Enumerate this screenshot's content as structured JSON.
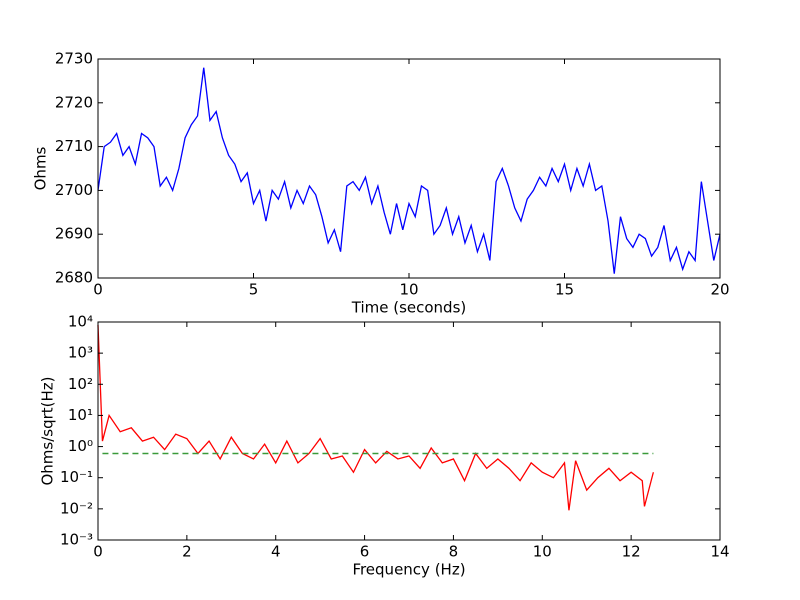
{
  "chart_data": [
    {
      "type": "line",
      "xlabel": "Time (seconds)",
      "ylabel": "Ohms",
      "xlim": [
        0,
        20
      ],
      "ylim": [
        2680,
        2730
      ],
      "xticks": [
        0,
        5,
        10,
        15,
        20
      ],
      "yticks": [
        2680,
        2690,
        2700,
        2710,
        2720,
        2730
      ],
      "series": [
        {
          "color": "#0000ff",
          "x": [
            0,
            0.2,
            0.4,
            0.6,
            0.8,
            1.0,
            1.2,
            1.4,
            1.6,
            1.8,
            2.0,
            2.2,
            2.4,
            2.6,
            2.8,
            3.0,
            3.2,
            3.4,
            3.6,
            3.8,
            4.0,
            4.2,
            4.4,
            4.6,
            4.8,
            5.0,
            5.2,
            5.4,
            5.6,
            5.8,
            6.0,
            6.2,
            6.4,
            6.6,
            6.8,
            7.0,
            7.2,
            7.4,
            7.6,
            7.8,
            8.0,
            8.2,
            8.4,
            8.6,
            8.8,
            9.0,
            9.2,
            9.4,
            9.6,
            9.8,
            10.0,
            10.2,
            10.4,
            10.6,
            10.8,
            11.0,
            11.2,
            11.4,
            11.6,
            11.8,
            12.0,
            12.2,
            12.4,
            12.6,
            12.8,
            13.0,
            13.2,
            13.4,
            13.6,
            13.8,
            14.0,
            14.2,
            14.4,
            14.6,
            14.8,
            15.0,
            15.2,
            15.4,
            15.6,
            15.8,
            16.0,
            16.2,
            16.4,
            16.6,
            16.8,
            17.0,
            17.2,
            17.4,
            17.6,
            17.8,
            18.0,
            18.2,
            18.4,
            18.6,
            18.8,
            19.0,
            19.2,
            19.4,
            19.6,
            19.8,
            20.0
          ],
          "values": [
            2700,
            2710,
            2711,
            2713,
            2708,
            2710,
            2706,
            2713,
            2712,
            2710,
            2701,
            2703,
            2700,
            2705,
            2712,
            2715,
            2717,
            2728,
            2716,
            2718,
            2712,
            2708,
            2706,
            2702,
            2704,
            2697,
            2700,
            2693,
            2700,
            2698,
            2702,
            2696,
            2700,
            2697,
            2701,
            2699,
            2694,
            2688,
            2691,
            2686,
            2701,
            2702,
            2700,
            2703,
            2697,
            2701,
            2695,
            2690,
            2697,
            2691,
            2697,
            2694,
            2701,
            2700,
            2690,
            2692,
            2696,
            2690,
            2694,
            2688,
            2692,
            2686,
            2690,
            2684,
            2702,
            2705,
            2701,
            2696,
            2693,
            2698,
            2700,
            2703,
            2701,
            2705,
            2702,
            2706,
            2700,
            2705,
            2701,
            2706,
            2700,
            2701,
            2693,
            2681,
            2694,
            2689,
            2687,
            2690,
            2689,
            2685,
            2687,
            2692,
            2684,
            2687,
            2682,
            2686,
            2684,
            2702,
            2693,
            2684,
            2690
          ]
        }
      ]
    },
    {
      "type": "line",
      "xlabel": "Frequency (Hz)",
      "ylabel": "Ohms/sqrt(Hz)",
      "yscale": "log",
      "xlim": [
        0,
        14
      ],
      "ylim": [
        0.001,
        10000
      ],
      "xticks": [
        0,
        2,
        4,
        6,
        8,
        10,
        12,
        14
      ],
      "yticks": [
        {
          "value": 0.001,
          "label": "10⁻³"
        },
        {
          "value": 0.01,
          "label": "10⁻²"
        },
        {
          "value": 0.1,
          "label": "10⁻¹"
        },
        {
          "value": 1,
          "label": "10⁰"
        },
        {
          "value": 10,
          "label": "10¹"
        },
        {
          "value": 100,
          "label": "10²"
        },
        {
          "value": 1000,
          "label": "10³"
        },
        {
          "value": 10000,
          "label": "10⁴"
        }
      ],
      "series": [
        {
          "color": "#ff0000",
          "x": [
            0,
            0.1,
            0.25,
            0.5,
            0.75,
            1.0,
            1.25,
            1.5,
            1.75,
            2.0,
            2.25,
            2.5,
            2.75,
            3.0,
            3.25,
            3.5,
            3.75,
            4.0,
            4.25,
            4.5,
            4.75,
            5.0,
            5.25,
            5.5,
            5.75,
            6.0,
            6.25,
            6.5,
            6.75,
            7.0,
            7.25,
            7.5,
            7.75,
            8.0,
            8.25,
            8.5,
            8.75,
            9.0,
            9.25,
            9.5,
            9.75,
            10.0,
            10.25,
            10.5,
            10.6,
            10.75,
            11.0,
            11.25,
            11.5,
            11.75,
            12.0,
            12.25,
            12.3,
            12.5
          ],
          "values": [
            8000,
            1.5,
            10,
            3,
            4,
            1.5,
            2,
            0.8,
            2.5,
            1.8,
            0.6,
            1.5,
            0.4,
            2,
            0.6,
            0.4,
            1.2,
            0.3,
            1.5,
            0.3,
            0.6,
            1.8,
            0.4,
            0.5,
            0.15,
            0.8,
            0.3,
            0.7,
            0.4,
            0.5,
            0.2,
            0.9,
            0.3,
            0.4,
            0.08,
            0.6,
            0.2,
            0.4,
            0.2,
            0.08,
            0.3,
            0.15,
            0.1,
            0.3,
            0.009,
            0.35,
            0.04,
            0.1,
            0.2,
            0.08,
            0.15,
            0.08,
            0.012,
            0.15
          ]
        },
        {
          "color": "#3a9a3a",
          "dash": true,
          "x": [
            0.1,
            12.5
          ],
          "values": [
            0.6,
            0.6
          ]
        }
      ]
    }
  ]
}
